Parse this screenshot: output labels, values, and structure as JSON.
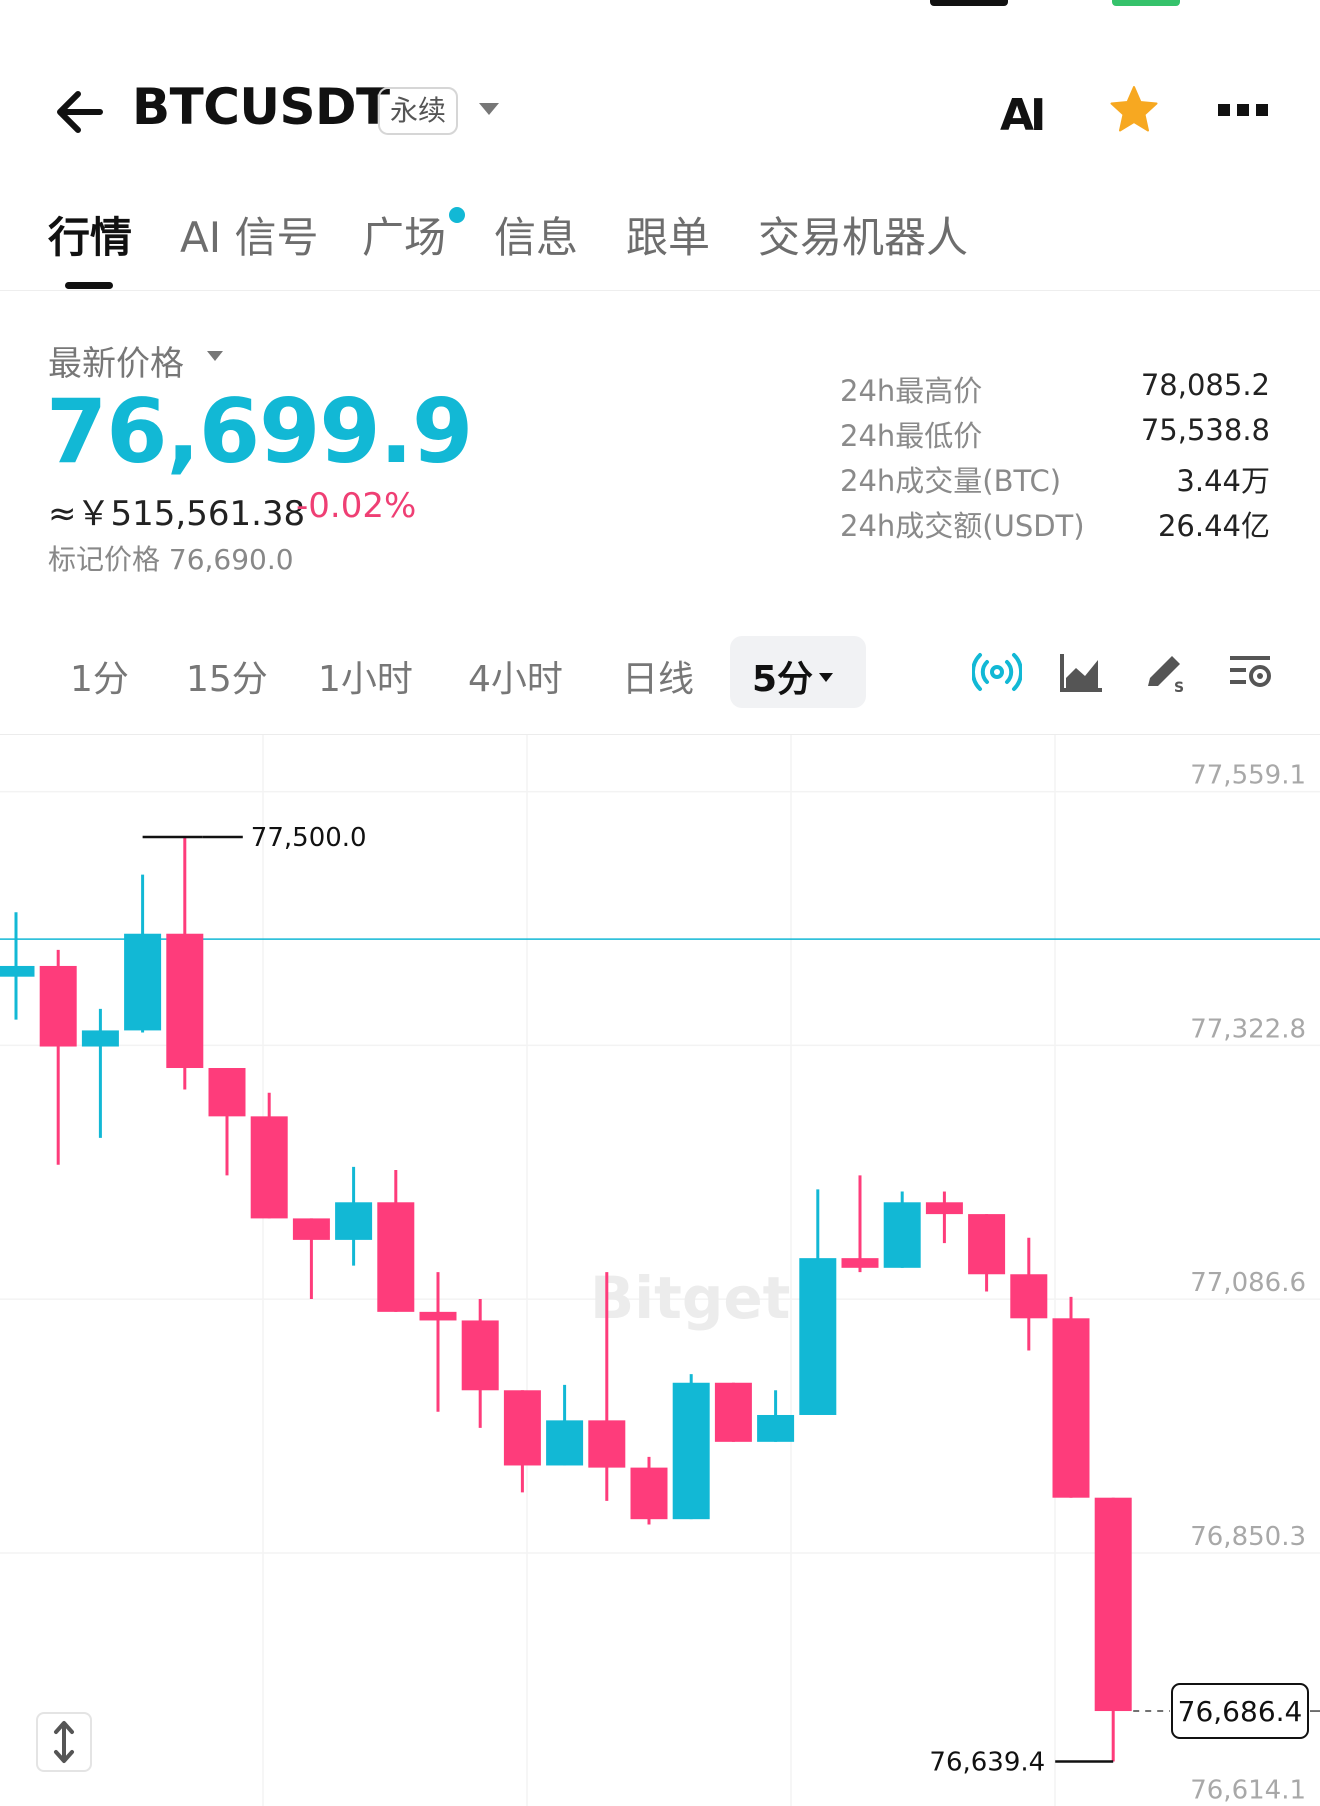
{
  "header": {
    "pair": "BTCUSDT",
    "contract_type": "永续",
    "ai_icon_text": "AI"
  },
  "tabs": [
    {
      "label": "行情",
      "active": true
    },
    {
      "label": "AI 信号",
      "active": false
    },
    {
      "label": "广场",
      "active": false,
      "has_dot": true
    },
    {
      "label": "信息",
      "active": false
    },
    {
      "label": "跟单",
      "active": false
    },
    {
      "label": "交易机器人",
      "active": false
    }
  ],
  "price": {
    "latest_label": "最新价格",
    "last": "76,699.9",
    "cny": "≈￥515,561.38",
    "change": "-0.02%",
    "mark_price": "标记价格 76,690.0"
  },
  "stats": [
    {
      "label": "24h最高价",
      "value": "78,085.2"
    },
    {
      "label": "24h最低价",
      "value": "75,538.8"
    },
    {
      "label": "24h成交量(BTC)",
      "value": "3.44万"
    },
    {
      "label": "24h成交额(USDT)",
      "value": "26.44亿"
    }
  ],
  "intervals": {
    "items": [
      "1分",
      "15分",
      "1小时",
      "4小时",
      "日线"
    ],
    "selected": "5分"
  },
  "tools": [
    "broadcast-icon",
    "area-chart-icon",
    "drawing-pen-icon",
    "chart-settings-icon"
  ],
  "colors": {
    "up": "#12b8d5",
    "down": "#fe3c7b",
    "accent": "#12b8d5",
    "star": "#f7a821"
  },
  "chart_data": {
    "type": "candlestick",
    "title": "",
    "watermark": "Bitget",
    "y_axis_ticks": [
      "77,559.1",
      "77,322.8",
      "77,086.6",
      "76,850.3",
      "76,614.1"
    ],
    "y_tick_values": [
      77559.1,
      77322.8,
      77086.6,
      76850.3,
      76614.1
    ],
    "ylim": [
      76598,
      77595
    ],
    "high_annotation": {
      "label": "77,500.0",
      "value": 77500.0
    },
    "low_annotation": {
      "label": "76,639.4",
      "value": 76639.4
    },
    "current_price": {
      "label": "76,686.4",
      "value": 76686.4
    },
    "reference_line_value": 77405,
    "candles": [
      {
        "o": 77370,
        "c": 77380,
        "h": 77430,
        "l": 77330
      },
      {
        "o": 77380,
        "c": 77305,
        "h": 77395,
        "l": 77195
      },
      {
        "o": 77305,
        "c": 77320,
        "h": 77340,
        "l": 77220
      },
      {
        "o": 77320,
        "c": 77410,
        "h": 77465,
        "l": 77318
      },
      {
        "o": 77410,
        "c": 77285,
        "h": 77500,
        "l": 77265
      },
      {
        "o": 77285,
        "c": 77240,
        "h": 77285,
        "l": 77185
      },
      {
        "o": 77240,
        "c": 77145,
        "h": 77262,
        "l": 77145
      },
      {
        "o": 77145,
        "c": 77125,
        "h": 77145,
        "l": 77070
      },
      {
        "o": 77125,
        "c": 77160,
        "h": 77193,
        "l": 77101
      },
      {
        "o": 77160,
        "c": 77058,
        "h": 77190,
        "l": 77058
      },
      {
        "o": 77058,
        "c": 77050,
        "h": 77095,
        "l": 76965
      },
      {
        "o": 77050,
        "c": 76985,
        "h": 77070,
        "l": 76950
      },
      {
        "o": 76985,
        "c": 76915,
        "h": 76985,
        "l": 76890
      },
      {
        "o": 76915,
        "c": 76957,
        "h": 76990,
        "l": 76915
      },
      {
        "o": 76957,
        "c": 76913,
        "h": 77095,
        "l": 76882
      },
      {
        "o": 76913,
        "c": 76865,
        "h": 76923,
        "l": 76860
      },
      {
        "o": 76865,
        "c": 76992,
        "h": 77000,
        "l": 76865
      },
      {
        "o": 76992,
        "c": 76937,
        "h": 76992,
        "l": 76937
      },
      {
        "o": 76937,
        "c": 76962,
        "h": 76985,
        "l": 76937
      },
      {
        "o": 76962,
        "c": 77108,
        "h": 77172,
        "l": 76962
      },
      {
        "o": 77108,
        "c": 77099,
        "h": 77185,
        "l": 77095
      },
      {
        "o": 77099,
        "c": 77160,
        "h": 77170,
        "l": 77099
      },
      {
        "o": 77160,
        "c": 77149,
        "h": 77170,
        "l": 77122
      },
      {
        "o": 77149,
        "c": 77093,
        "h": 77149,
        "l": 77077
      },
      {
        "o": 77093,
        "c": 77052,
        "h": 77127,
        "l": 77022
      },
      {
        "o": 77052,
        "c": 76885,
        "h": 77072,
        "l": 76885
      },
      {
        "o": 76885,
        "c": 76686.4,
        "h": 76885,
        "l": 76639.4
      }
    ]
  }
}
